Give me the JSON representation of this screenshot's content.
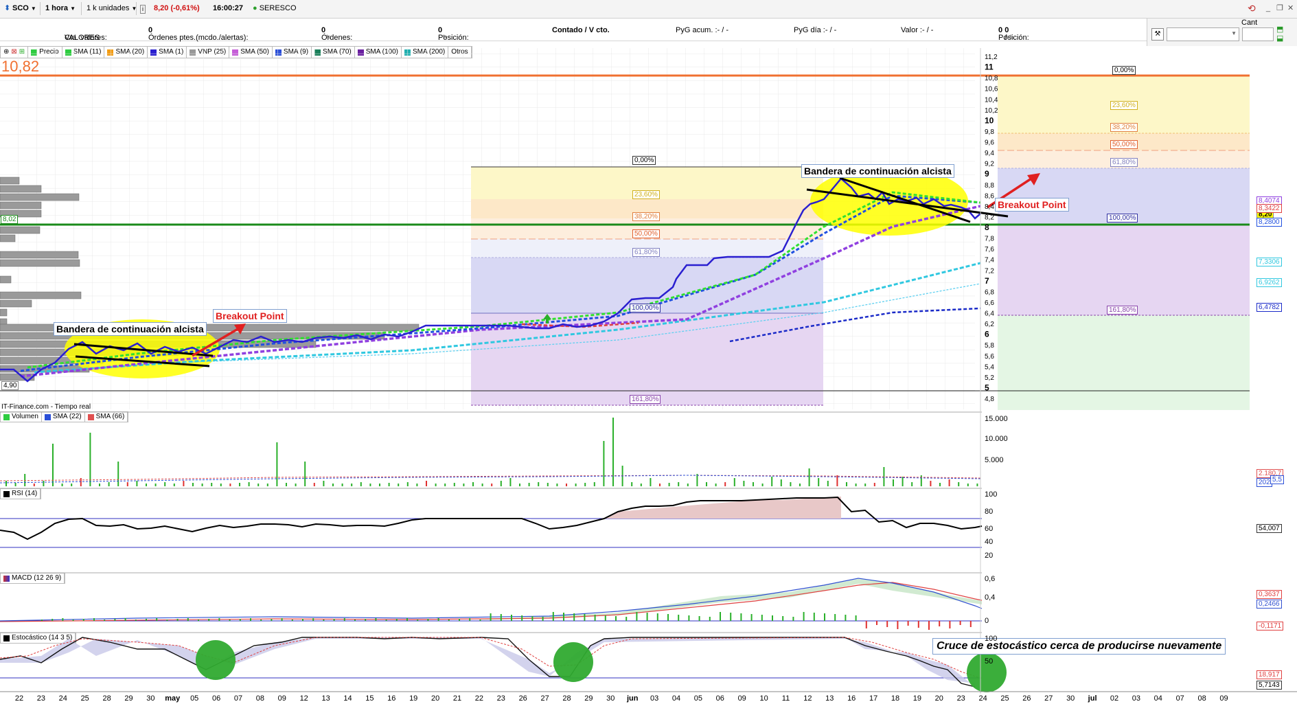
{
  "toolbar": {
    "ticker": "SCO",
    "timeframe": "1 hora",
    "units": "1 k unidades",
    "price": "8,20 (-0,61%)",
    "time": "16:00:27",
    "company": "SERESCO",
    "cant_label": "Cant"
  },
  "account": {
    "cta": "Cta. valores:",
    "cta_value": "VALORES",
    "ordenes_ptes_label": "Órdenes ptes.(mcdo./alertas):",
    "ordenes_ptes_value": "0",
    "ordenes_label": "Órdenes:",
    "ordenes_value": "0",
    "posicion_label": "Posición:",
    "posicion_value": "0",
    "mode": "Contado / V cto.",
    "pyg_acum": "PyG acum. :- / -",
    "pyg_dia": "PyG día :- / -",
    "valor": "Valor :- / -",
    "posicion2_label": "Posición:",
    "posicion2_value": "0",
    "posicion2_sep": "/",
    "posicion2_value_b": "0"
  },
  "legend_items": [
    {
      "label": "Precio",
      "color": "#2ecc40"
    },
    {
      "label": "SMA (11)",
      "color": "#2ecc40"
    },
    {
      "label": "SMA (20)",
      "color": "#f39c12"
    },
    {
      "label": "SMA (1)",
      "color": "#2a1fd0"
    },
    {
      "label": "VNP (25)",
      "color": "#999999"
    },
    {
      "label": "SMA (50)",
      "color": "#c65fd8"
    },
    {
      "label": "SMA (9)",
      "color": "#2b4fd8"
    },
    {
      "label": "SMA (70)",
      "color": "#1a7f5a"
    },
    {
      "label": "SMA (100)",
      "color": "#6a1fa0"
    },
    {
      "label": "SMA (200)",
      "color": "#20b0b0"
    },
    {
      "label": "Otros",
      "color": ""
    }
  ],
  "source": "IT-Finance.com - Tiempo real",
  "current_price_big": "10,82",
  "price_labels": {
    "left_802": "8,02",
    "left_490": "4,90",
    "right_820": "8,20"
  },
  "annotations": {
    "flag1": "Bandera de continuación alcista",
    "flag2": "Bandera de continuación alcista",
    "breakout1": "Breakout Point",
    "breakout2": "Breakout Point",
    "stoch_note": "Cruce de estocástico cerca de producirse nuevamente"
  },
  "fib_mid": [
    "0,00%",
    "23,60%",
    "38,20%",
    "50,00%",
    "61,80%",
    "100,00%",
    "161,80%"
  ],
  "fib_right": [
    "0,00%",
    "23,60%",
    "38,20%",
    "50,00%",
    "61,80%",
    "100,00%",
    "161,80%"
  ],
  "price_axis": [
    "11,2",
    "11",
    "10,8",
    "10,6",
    "10,4",
    "10,2",
    "10",
    "9,8",
    "9,6",
    "9,4",
    "9,2",
    "9",
    "8,8",
    "8,6",
    "8,4",
    "8,2",
    "8",
    "7,8",
    "7,6",
    "7,4",
    "7,2",
    "7",
    "6,8",
    "6,6",
    "6,4",
    "6,2",
    "6",
    "5,8",
    "5,6",
    "5,4",
    "5,2",
    "5",
    "4,8"
  ],
  "right_tags": [
    "8,4074",
    "8,3422",
    "8,2800",
    "7,3306",
    "6,9262",
    "6,4782"
  ],
  "volume_legend": [
    {
      "label": "Volumen",
      "color": "#2ecc40"
    },
    {
      "label": "SMA (22)",
      "color": "#2b4fd8"
    },
    {
      "label": "SMA (66)",
      "color": "#e05050"
    }
  ],
  "volume_axis": [
    "15.000",
    "10.000",
    "5.000"
  ],
  "volume_tags": [
    "2.180,7",
    "202",
    "5,5"
  ],
  "rsi_legend": "RSI (14)",
  "rsi_axis": [
    "100",
    "80",
    "60",
    "40",
    "20"
  ],
  "rsi_tag": "54,007",
  "macd_legend": "MACD (12 26 9)",
  "macd_axis": [
    "0,6",
    "0,4",
    "0,2",
    "0"
  ],
  "macd_tags": [
    "0,3637",
    "0,2466",
    "-0,1171"
  ],
  "stoch_legend": "Estocástico (14 3 5)",
  "stoch_axis": [
    "100",
    "50"
  ],
  "stoch_tags": [
    "18,917",
    "5,7143"
  ],
  "x_axis": [
    "22",
    "23",
    "24",
    "25",
    "28",
    "29",
    "30",
    "may",
    "05",
    "06",
    "07",
    "08",
    "09",
    "12",
    "13",
    "14",
    "15",
    "16",
    "19",
    "20",
    "21",
    "22",
    "23",
    "26",
    "27",
    "28",
    "29",
    "30",
    "jun",
    "03",
    "04",
    "05",
    "06",
    "09",
    "10",
    "11",
    "12",
    "13",
    "16",
    "17",
    "18",
    "19",
    "20",
    "23",
    "24",
    "25",
    "26",
    "27",
    "30",
    "jul",
    "02",
    "03",
    "04",
    "07",
    "08",
    "09"
  ],
  "chart_data": {
    "type": "line",
    "title": "SCO",
    "price_range": [
      4.8,
      11.2
    ],
    "series_price_hourly": [
      5.3,
      5.2,
      5.1,
      5.5,
      5.8,
      5.6,
      5.7,
      5.6,
      5.7,
      5.6,
      5.8,
      5.8,
      5.8,
      5.9,
      5.9,
      5.9,
      6.0,
      6.0,
      6.0,
      6.1,
      6.2,
      6.2,
      6.1,
      6.1,
      6.1,
      6.1,
      6.2,
      6.6,
      6.6,
      7.3,
      7.4,
      7.4,
      7.8,
      8.5,
      8.9,
      8.6,
      8.6,
      8.3,
      8.5,
      8.3,
      8.2
    ],
    "rsi_range": [
      0,
      100
    ],
    "rsi_values": [
      56,
      48,
      60,
      55,
      54,
      53,
      55,
      60,
      58,
      62,
      62,
      64,
      60,
      62,
      72,
      74,
      82,
      85,
      80,
      66,
      64,
      58,
      54
    ],
    "stoch_range": [
      0,
      100
    ],
    "stoch_values": [
      85,
      70,
      95,
      55,
      40,
      95,
      96,
      95,
      96,
      95,
      90,
      55,
      25,
      80,
      96,
      95,
      96,
      95,
      70,
      55,
      30,
      10,
      5
    ]
  }
}
